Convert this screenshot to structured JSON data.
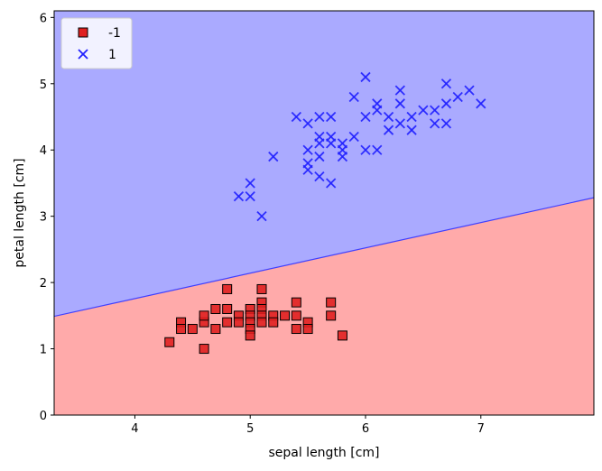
{
  "chart_data": {
    "type": "scatter",
    "title": "",
    "xlabel": "sepal length [cm]",
    "ylabel": "petal length [cm]",
    "xlim": [
      3.3,
      7.98
    ],
    "ylim": [
      0,
      6.1
    ],
    "x_ticks": [
      4,
      5,
      6,
      7
    ],
    "y_ticks": [
      0,
      1,
      2,
      3,
      4,
      5,
      6
    ],
    "grid": false,
    "legend_position": "upper-left",
    "decision_boundary": {
      "x": [
        3.3,
        7.98
      ],
      "y": [
        1.49,
        3.28
      ],
      "regions": [
        {
          "label": "-1",
          "side": "below",
          "color": "#ffaaaa"
        },
        {
          "label": "1",
          "side": "above",
          "color": "#aaaaff"
        }
      ],
      "line_color": "#4040ff"
    },
    "series": [
      {
        "name": "-1",
        "marker": "square",
        "color": "#e02020",
        "edge_color": "#000000",
        "points": [
          [
            4.3,
            1.1
          ],
          [
            4.4,
            1.4
          ],
          [
            4.4,
            1.3
          ],
          [
            4.5,
            1.3
          ],
          [
            4.6,
            1.4
          ],
          [
            4.6,
            1.5
          ],
          [
            4.6,
            1.0
          ],
          [
            4.7,
            1.3
          ],
          [
            4.7,
            1.6
          ],
          [
            4.8,
            1.9
          ],
          [
            4.8,
            1.6
          ],
          [
            4.8,
            1.4
          ],
          [
            4.9,
            1.5
          ],
          [
            4.9,
            1.4
          ],
          [
            5.0,
            1.6
          ],
          [
            5.0,
            1.5
          ],
          [
            5.0,
            1.4
          ],
          [
            5.0,
            1.3
          ],
          [
            5.0,
            1.2
          ],
          [
            5.1,
            1.9
          ],
          [
            5.1,
            1.7
          ],
          [
            5.1,
            1.6
          ],
          [
            5.1,
            1.5
          ],
          [
            5.1,
            1.4
          ],
          [
            5.2,
            1.5
          ],
          [
            5.2,
            1.4
          ],
          [
            5.3,
            1.5
          ],
          [
            5.4,
            1.7
          ],
          [
            5.4,
            1.5
          ],
          [
            5.4,
            1.3
          ],
          [
            5.5,
            1.4
          ],
          [
            5.5,
            1.3
          ],
          [
            5.7,
            1.7
          ],
          [
            5.7,
            1.5
          ],
          [
            5.8,
            1.2
          ]
        ]
      },
      {
        "name": "1",
        "marker": "x",
        "color": "#2020ff",
        "points": [
          [
            4.9,
            3.3
          ],
          [
            5.0,
            3.5
          ],
          [
            5.0,
            3.3
          ],
          [
            5.1,
            3.0
          ],
          [
            5.2,
            3.9
          ],
          [
            5.4,
            4.5
          ],
          [
            5.5,
            4.4
          ],
          [
            5.5,
            4.0
          ],
          [
            5.5,
            3.8
          ],
          [
            5.5,
            3.7
          ],
          [
            5.6,
            4.5
          ],
          [
            5.6,
            4.2
          ],
          [
            5.6,
            4.1
          ],
          [
            5.6,
            3.9
          ],
          [
            5.6,
            3.6
          ],
          [
            5.7,
            4.5
          ],
          [
            5.7,
            4.2
          ],
          [
            5.7,
            4.1
          ],
          [
            5.7,
            3.5
          ],
          [
            5.8,
            4.1
          ],
          [
            5.8,
            4.0
          ],
          [
            5.8,
            3.9
          ],
          [
            5.9,
            4.8
          ],
          [
            5.9,
            4.2
          ],
          [
            6.0,
            5.1
          ],
          [
            6.0,
            4.5
          ],
          [
            6.0,
            4.0
          ],
          [
            6.1,
            4.7
          ],
          [
            6.1,
            4.6
          ],
          [
            6.1,
            4.0
          ],
          [
            6.2,
            4.5
          ],
          [
            6.2,
            4.3
          ],
          [
            6.3,
            4.9
          ],
          [
            6.3,
            4.7
          ],
          [
            6.3,
            4.4
          ],
          [
            6.4,
            4.5
          ],
          [
            6.4,
            4.3
          ],
          [
            6.5,
            4.6
          ],
          [
            6.6,
            4.6
          ],
          [
            6.6,
            4.4
          ],
          [
            6.7,
            5.0
          ],
          [
            6.7,
            4.7
          ],
          [
            6.7,
            4.4
          ],
          [
            6.8,
            4.8
          ],
          [
            6.9,
            4.9
          ],
          [
            7.0,
            4.7
          ]
        ]
      }
    ]
  }
}
